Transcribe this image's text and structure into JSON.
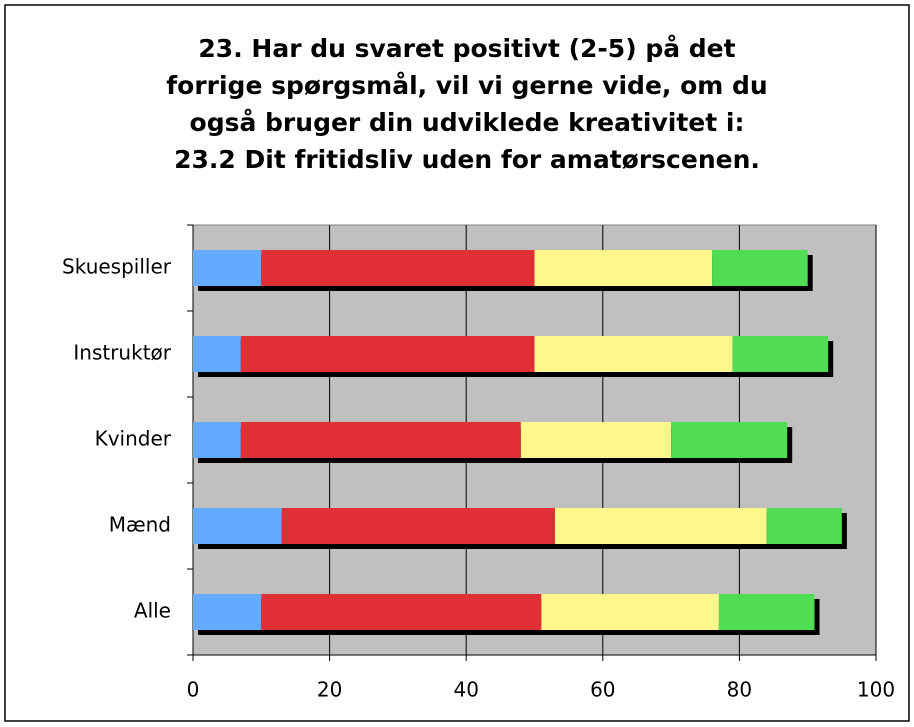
{
  "chart_data": {
    "type": "stacked_barh",
    "title": [
      "23. Har du svaret positivt (2-5) på det",
      "forrige spørgsmål, vil vi gerne vide, om du",
      "også bruger din udviklede kreativitet i:",
      "23.2 Dit fritidsliv uden for amatørscenen."
    ],
    "categories": [
      "Skuespiller",
      "Instruktør",
      "Kvinder",
      "Mænd",
      "Alle"
    ],
    "series": [
      {
        "color": "#66aaff",
        "values": [
          10,
          7,
          7,
          13,
          10
        ]
      },
      {
        "color": "#e03035",
        "values": [
          40,
          43,
          41,
          40,
          41
        ]
      },
      {
        "color": "#fff68c",
        "values": [
          26,
          29,
          22,
          31,
          26
        ]
      },
      {
        "color": "#50dd55",
        "values": [
          14,
          14,
          17,
          11,
          14
        ]
      }
    ],
    "xlim": [
      0,
      100
    ],
    "xticks": [
      0,
      20,
      40,
      60,
      80,
      100
    ],
    "grid": true
  }
}
